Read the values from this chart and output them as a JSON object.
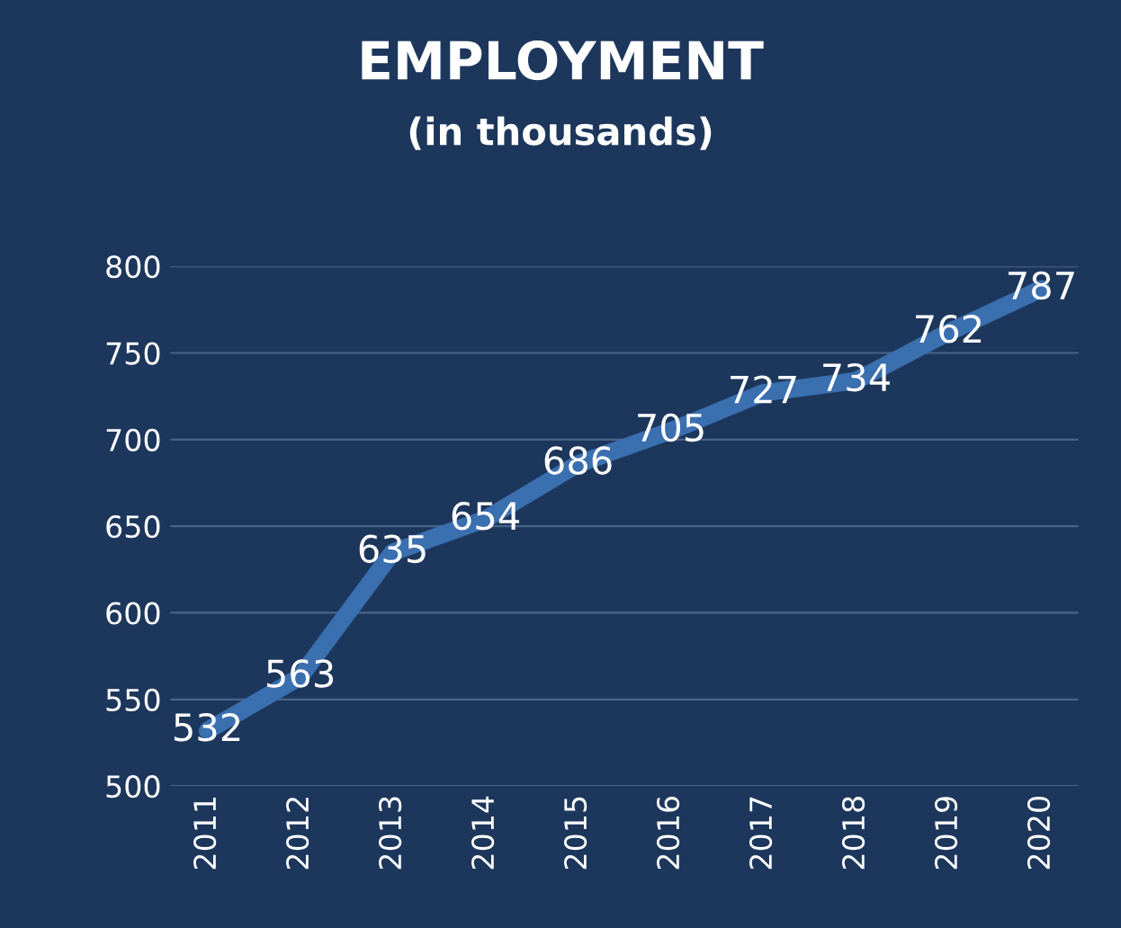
{
  "chart_data": {
    "type": "line",
    "title": "EMPLOYMENT",
    "subtitle": "(in thousands)",
    "categories": [
      "2011",
      "2012",
      "2013",
      "2014",
      "2015",
      "2016",
      "2017",
      "2018",
      "2019",
      "2020"
    ],
    "series": [
      {
        "color": "#3a6fb0",
        "values": [
          532,
          563,
          635,
          654,
          686,
          705,
          727,
          734,
          762,
          787
        ]
      }
    ],
    "ylim": [
      500,
      800
    ],
    "yticks": [
      500,
      550,
      600,
      650,
      700,
      750,
      800
    ],
    "grid": "y",
    "data_labels": true,
    "legend": false,
    "marker": "none",
    "line_style": "solid"
  }
}
